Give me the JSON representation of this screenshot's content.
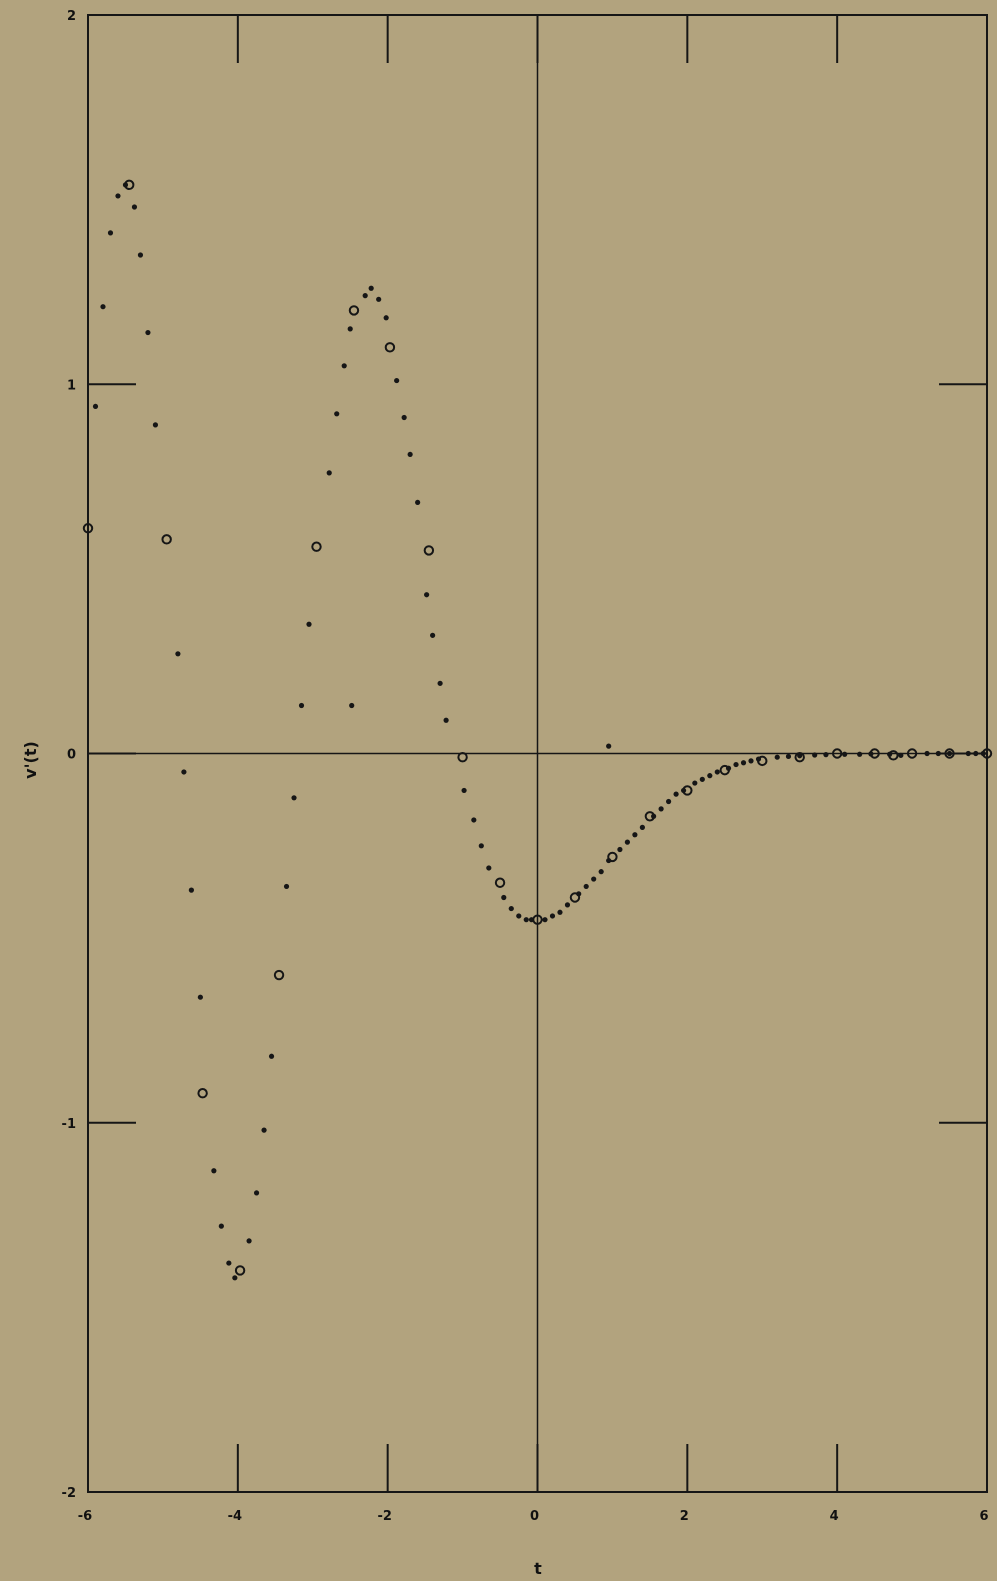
{
  "chart_data": {
    "type": "scatter",
    "title": "",
    "xlabel": "t",
    "ylabel": "v'(t)",
    "xlim": [
      -6,
      6
    ],
    "ylim": [
      -2,
      2
    ],
    "xticks": [
      -6,
      -4,
      -2,
      0,
      2,
      4,
      6
    ],
    "yticks": [
      -2,
      -1,
      0,
      1,
      2
    ],
    "xtick_labels": [
      "-6",
      "-4",
      "-2",
      "0",
      "2",
      "4",
      "6"
    ],
    "ytick_labels": [
      "-2",
      "-1",
      "0",
      "1",
      "2"
    ],
    "grid": false,
    "legend": "none",
    "marker_color": "#161616",
    "series": [
      {
        "marker": "dot",
        "points": [
          [
            -5.9,
            0.94
          ],
          [
            -5.8,
            1.21
          ],
          [
            -5.7,
            1.41
          ],
          [
            -5.6,
            1.51
          ],
          [
            -5.5,
            1.54
          ],
          [
            -5.38,
            1.48
          ],
          [
            -5.3,
            1.35
          ],
          [
            -5.2,
            1.14
          ],
          [
            -5.1,
            0.89
          ],
          [
            -4.8,
            0.27
          ],
          [
            -4.72,
            -0.05
          ],
          [
            -4.62,
            -0.37
          ],
          [
            -4.5,
            -0.66
          ],
          [
            -4.32,
            -1.13
          ],
          [
            -4.22,
            -1.28
          ],
          [
            -4.12,
            -1.38
          ],
          [
            -4.04,
            -1.42
          ],
          [
            -3.85,
            -1.32
          ],
          [
            -3.75,
            -1.19
          ],
          [
            -3.65,
            -1.02
          ],
          [
            -3.55,
            -0.82
          ],
          [
            -3.35,
            -0.36
          ],
          [
            -3.25,
            -0.12
          ],
          [
            -3.15,
            0.13
          ],
          [
            -3.05,
            0.35
          ],
          [
            -2.78,
            0.76
          ],
          [
            -2.68,
            0.92
          ],
          [
            -2.58,
            1.05
          ],
          [
            -2.5,
            1.15
          ],
          [
            -2.48,
            0.13
          ],
          [
            -2.3,
            1.24
          ],
          [
            -2.22,
            1.26
          ],
          [
            -2.12,
            1.23
          ],
          [
            -2.02,
            1.18
          ],
          [
            -1.88,
            1.01
          ],
          [
            -1.78,
            0.91
          ],
          [
            -1.7,
            0.81
          ],
          [
            -1.6,
            0.68
          ],
          [
            -1.48,
            0.43
          ],
          [
            -1.4,
            0.32
          ],
          [
            -1.3,
            0.19
          ],
          [
            -1.22,
            0.09
          ],
          [
            -0.98,
            -0.1
          ],
          [
            -0.85,
            -0.18
          ],
          [
            -0.75,
            -0.25
          ],
          [
            -0.65,
            -0.31
          ],
          [
            -0.45,
            -0.39
          ],
          [
            -0.35,
            -0.42
          ],
          [
            -0.25,
            -0.44
          ],
          [
            -0.15,
            -0.45
          ],
          [
            -0.08,
            -0.45
          ],
          [
            0.1,
            -0.45
          ],
          [
            0.2,
            -0.44
          ],
          [
            0.3,
            -0.43
          ],
          [
            0.4,
            -0.41
          ],
          [
            0.55,
            -0.38
          ],
          [
            0.65,
            -0.36
          ],
          [
            0.75,
            -0.34
          ],
          [
            0.85,
            -0.32
          ],
          [
            0.95,
            -0.29
          ],
          [
            1.1,
            -0.26
          ],
          [
            1.2,
            -0.24
          ],
          [
            1.3,
            -0.22
          ],
          [
            1.4,
            -0.2
          ],
          [
            1.55,
            -0.17
          ],
          [
            1.65,
            -0.15
          ],
          [
            1.75,
            -0.13
          ],
          [
            1.85,
            -0.11
          ],
          [
            1.95,
            -0.1
          ],
          [
            2.1,
            -0.08
          ],
          [
            2.2,
            -0.07
          ],
          [
            2.3,
            -0.06
          ],
          [
            2.4,
            -0.05
          ],
          [
            2.55,
            -0.04
          ],
          [
            2.65,
            -0.03
          ],
          [
            2.75,
            -0.025
          ],
          [
            2.85,
            -0.02
          ],
          [
            2.95,
            -0.015
          ],
          [
            3.2,
            -0.01
          ],
          [
            3.35,
            -0.008
          ],
          [
            3.5,
            -0.006
          ],
          [
            3.7,
            -0.004
          ],
          [
            3.85,
            -0.003
          ],
          [
            4.1,
            -0.002
          ],
          [
            4.3,
            -0.002
          ],
          [
            4.45,
            -0.001
          ],
          [
            4.7,
            -0.002
          ],
          [
            4.85,
            -0.005
          ],
          [
            5.2,
            0.0
          ],
          [
            5.35,
            0.0
          ],
          [
            5.5,
            0.0
          ],
          [
            5.75,
            0.0
          ],
          [
            5.85,
            0.0
          ],
          [
            5.95,
            0.0
          ],
          [
            0.95,
            0.02
          ]
        ]
      },
      {
        "marker": "circle",
        "points": [
          [
            -6.0,
            0.61
          ],
          [
            -5.45,
            1.54
          ],
          [
            -4.95,
            0.58
          ],
          [
            -4.47,
            -0.92
          ],
          [
            -3.97,
            -1.4
          ],
          [
            -3.45,
            -0.6
          ],
          [
            -2.95,
            0.56
          ],
          [
            -2.45,
            1.2
          ],
          [
            -1.97,
            1.1
          ],
          [
            -1.45,
            0.55
          ],
          [
            -1.0,
            -0.01
          ],
          [
            -0.5,
            -0.35
          ],
          [
            0.0,
            -0.45
          ],
          [
            0.5,
            -0.39
          ],
          [
            1.0,
            -0.28
          ],
          [
            1.5,
            -0.17
          ],
          [
            2.0,
            -0.1
          ],
          [
            2.5,
            -0.045
          ],
          [
            3.0,
            -0.02
          ],
          [
            3.5,
            -0.01
          ],
          [
            4.0,
            0.0
          ],
          [
            4.5,
            0.0
          ],
          [
            4.75,
            -0.005
          ],
          [
            5.0,
            0.0
          ],
          [
            5.5,
            0.0
          ],
          [
            6.0,
            0.0
          ]
        ]
      }
    ]
  }
}
